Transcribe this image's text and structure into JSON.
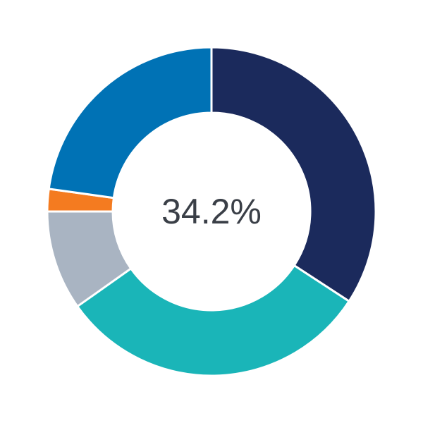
{
  "chart_data": {
    "type": "pie",
    "variant": "donut",
    "center_label": "34.2%",
    "start": "top",
    "direction": "clockwise",
    "slices": [
      {
        "value": 34.2,
        "color": "#1b2a5c"
      },
      {
        "value": 31.0,
        "color": "#1ab5b8"
      },
      {
        "value": 9.8,
        "color": "#a9b4c2"
      },
      {
        "value": 2.2,
        "color": "#f47b20"
      },
      {
        "value": 22.8,
        "color": "#0072b5"
      }
    ]
  }
}
